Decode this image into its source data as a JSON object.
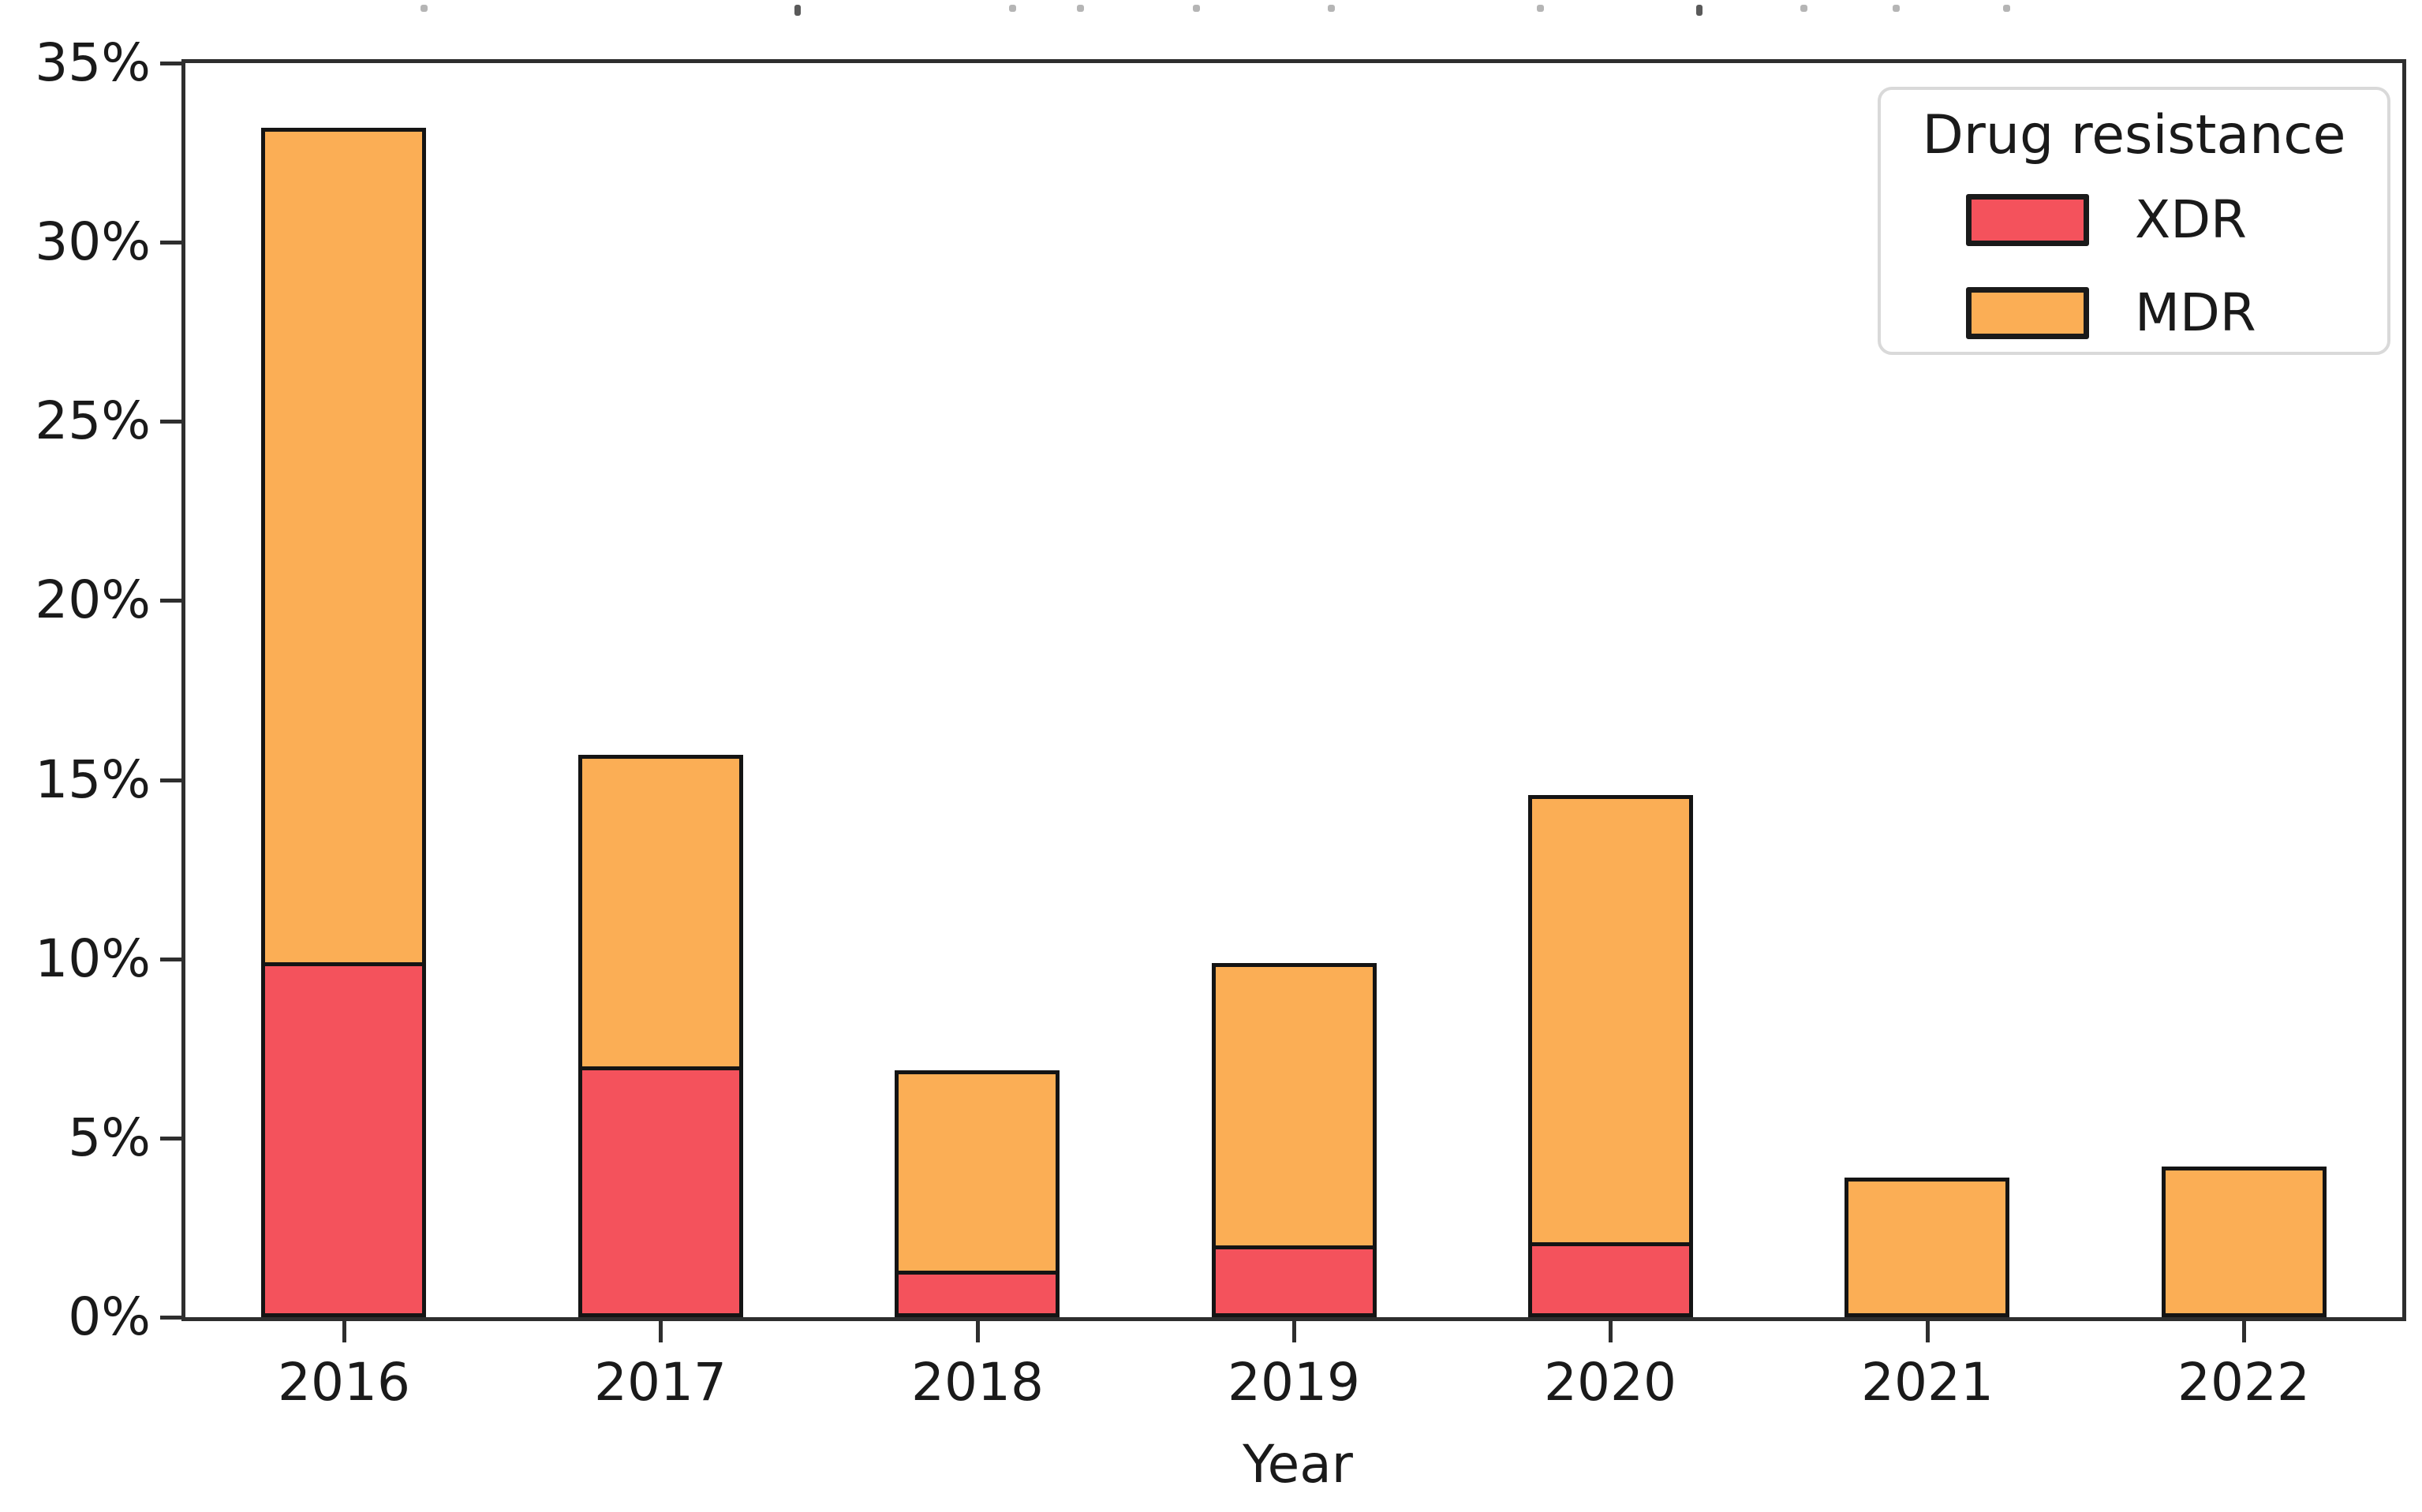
{
  "figure": {
    "xaxis_title": "Year",
    "legend": {
      "title": "Drug resistance",
      "entries": [
        {
          "label": "XDR",
          "color": "#f4525c"
        },
        {
          "label": "MDR",
          "color": "#fbae55"
        }
      ]
    }
  },
  "chart_data": {
    "type": "bar",
    "stacked": true,
    "title": "",
    "xlabel": "Year",
    "ylabel": "",
    "categories": [
      "2016",
      "2017",
      "2018",
      "2019",
      "2020",
      "2021",
      "2022"
    ],
    "series": [
      {
        "name": "XDR",
        "color": "#f4525c",
        "values": [
          9.9,
          7.0,
          1.3,
          2.0,
          2.1,
          0,
          0
        ]
      },
      {
        "name": "MDR",
        "color": "#fbae55",
        "values": [
          23.4,
          8.8,
          5.7,
          8.0,
          12.6,
          3.9,
          4.2
        ]
      }
    ],
    "stack_totals": [
      33.3,
      15.8,
      7.0,
      10.0,
      14.7,
      3.9,
      4.2
    ],
    "ylim": [
      0,
      35
    ],
    "yticks": [
      {
        "value": 0,
        "label": "0%"
      },
      {
        "value": 5,
        "label": "5%"
      },
      {
        "value": 10,
        "label": "10%"
      },
      {
        "value": 15,
        "label": "15%"
      },
      {
        "value": 20,
        "label": "20%"
      },
      {
        "value": 25,
        "label": "25%"
      },
      {
        "value": 30,
        "label": "30%"
      },
      {
        "value": 35,
        "label": "35%"
      }
    ],
    "grid": false,
    "legend_position": "upper right",
    "bar_width_frac": 0.52,
    "bar_edge_color": "#141414",
    "clipped_title_marks_x": [
      533,
      1007,
      1279,
      1365,
      1512,
      1683,
      1948,
      2150,
      2282,
      2399,
      2539
    ],
    "clipped_title_dark_marks_x": [
      1007,
      2150
    ]
  }
}
